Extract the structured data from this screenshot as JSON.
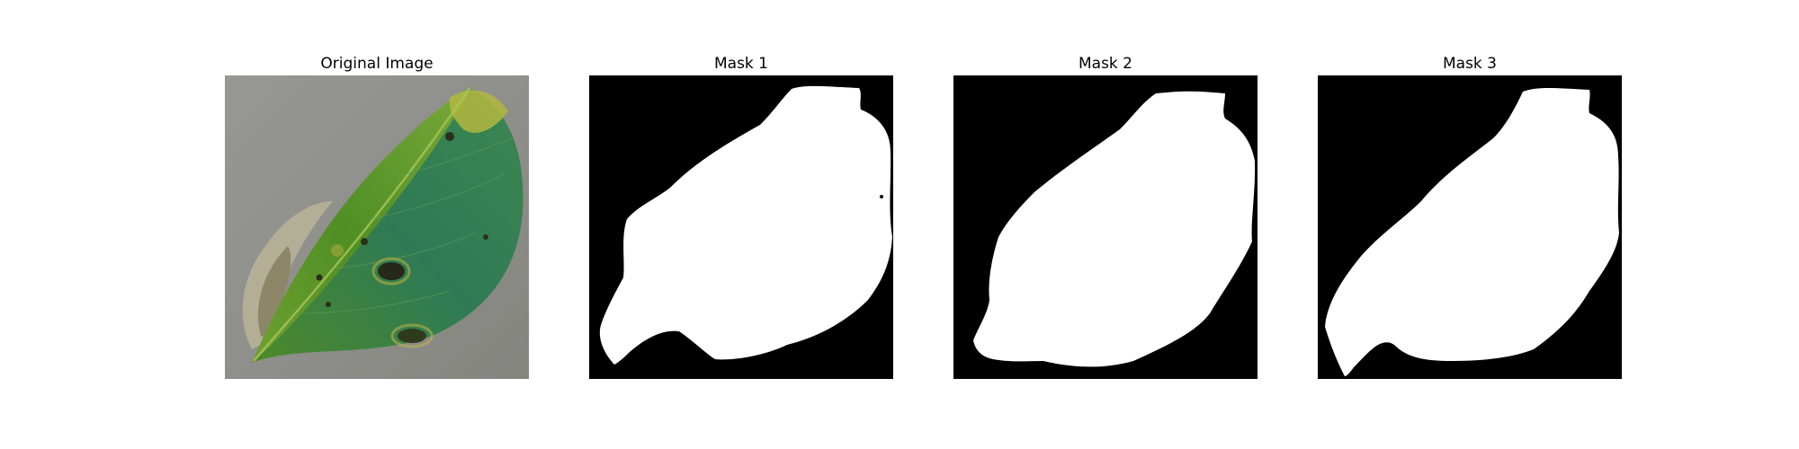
{
  "figure": {
    "panels": [
      {
        "title": "Original Image",
        "kind": "photo",
        "subject": "leaf-icon"
      },
      {
        "title": "Mask 1",
        "kind": "binary-mask"
      },
      {
        "title": "Mask 2",
        "kind": "binary-mask"
      },
      {
        "title": "Mask 3",
        "kind": "binary-mask"
      }
    ]
  },
  "colors": {
    "background": "#ffffff",
    "mask_background": "#000000",
    "mask_foreground": "#ffffff",
    "photo_backdrop": "#8f8f8c",
    "leaf_dark": "#3f7a1e",
    "leaf_light": "#6aa52e",
    "leaf_teal": "#2e7a5a",
    "leaf_spot": "#2a2a1a",
    "leaf_dry": "#b8b49a"
  }
}
